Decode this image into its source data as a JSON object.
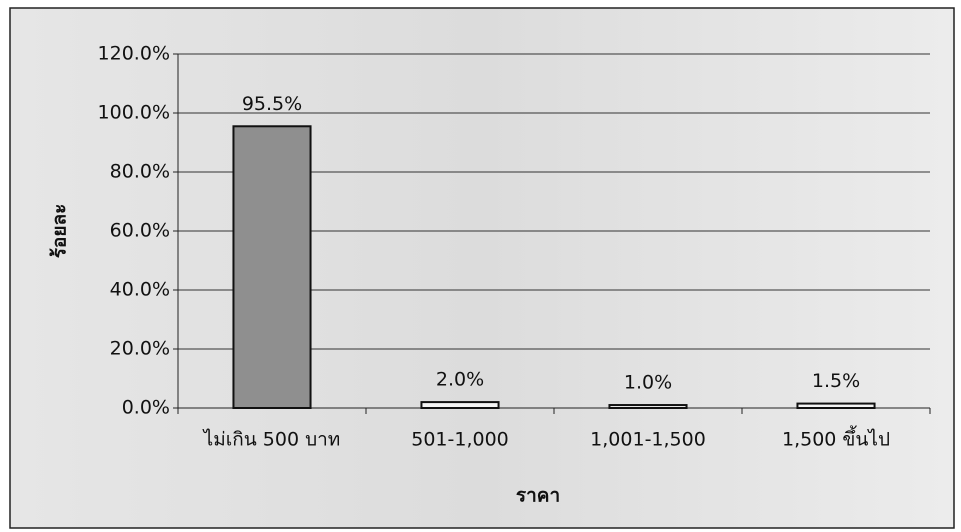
{
  "chart_data": {
    "type": "bar",
    "x_label": "ราคา",
    "y_label": "ร้อยละ",
    "categories": [
      "ไม่เกิน 500 บาท",
      "501-1,000",
      "1,001-1,500",
      "1,500 ขึ้นไป"
    ],
    "values": [
      95.5,
      2.0,
      1.0,
      1.5
    ],
    "value_labels": [
      "95.5%",
      "2.0%",
      "1.0%",
      "1.5%"
    ],
    "colors": [
      "#8f8f8f",
      "#f4f4f4",
      "#f4f4f4",
      "#f4f4f4"
    ],
    "ylim": [
      0,
      120
    ],
    "yticks": [
      {
        "value": 0,
        "label": "0.0%"
      },
      {
        "value": 20,
        "label": "20.0%"
      },
      {
        "value": 40,
        "label": "40.0%"
      },
      {
        "value": 60,
        "label": "60.0%"
      },
      {
        "value": 80,
        "label": "80.0%"
      },
      {
        "value": 100,
        "label": "100.0%"
      },
      {
        "value": 120,
        "label": "120.0%"
      }
    ],
    "grid": true
  }
}
